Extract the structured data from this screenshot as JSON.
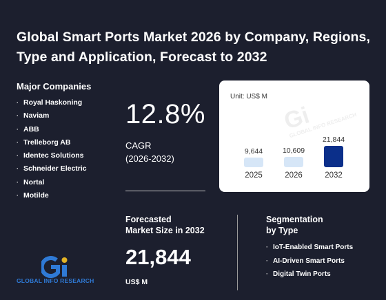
{
  "title": "Global Smart Ports Market 2026 by Company, Regions, Type and Application, Forecast to 2032",
  "companies": {
    "heading": "Major Companies",
    "items": [
      "Royal Haskoning",
      "Naviam",
      "ABB",
      "Trelleborg AB",
      "Identec Solutions",
      "Schneider Electric",
      "Nortal",
      "Motilde"
    ]
  },
  "cagr": {
    "value": "12.8%",
    "label": "CAGR",
    "period": "(2026-2032)"
  },
  "forecast": {
    "label_line1": "Forecasted",
    "label_line2": "Market Size in 2032",
    "value": "21,844",
    "unit": "US$ M"
  },
  "segmentation": {
    "heading_line1": "Segmentation",
    "heading_line2": "by Type",
    "items": [
      "IoT-Enabled Smart Ports",
      "AI-Driven Smart Ports",
      "Digital Twin Ports"
    ]
  },
  "logo": {
    "text": "GLOBAL INFO RESEARCH",
    "mark": "Gi"
  },
  "watermark": {
    "mark": "Gi",
    "text": "GLOBAL INFO RESEARCH"
  },
  "colors": {
    "background": "#1c1f2e",
    "bar_light": "#d6e6f7",
    "bar_dark": "#0b2f8a",
    "logo_blue": "#2f7ad6",
    "logo_yellow": "#e3b325"
  },
  "chart_data": {
    "type": "bar",
    "unit_label": "Unit: US$ M",
    "categories": [
      "2025",
      "2026",
      "2032"
    ],
    "values": [
      9644,
      10609,
      21844
    ],
    "value_labels": [
      "9,644",
      "10,609",
      "21,844"
    ],
    "bar_colors": [
      "#d6e6f7",
      "#d6e6f7",
      "#0b2f8a"
    ]
  }
}
